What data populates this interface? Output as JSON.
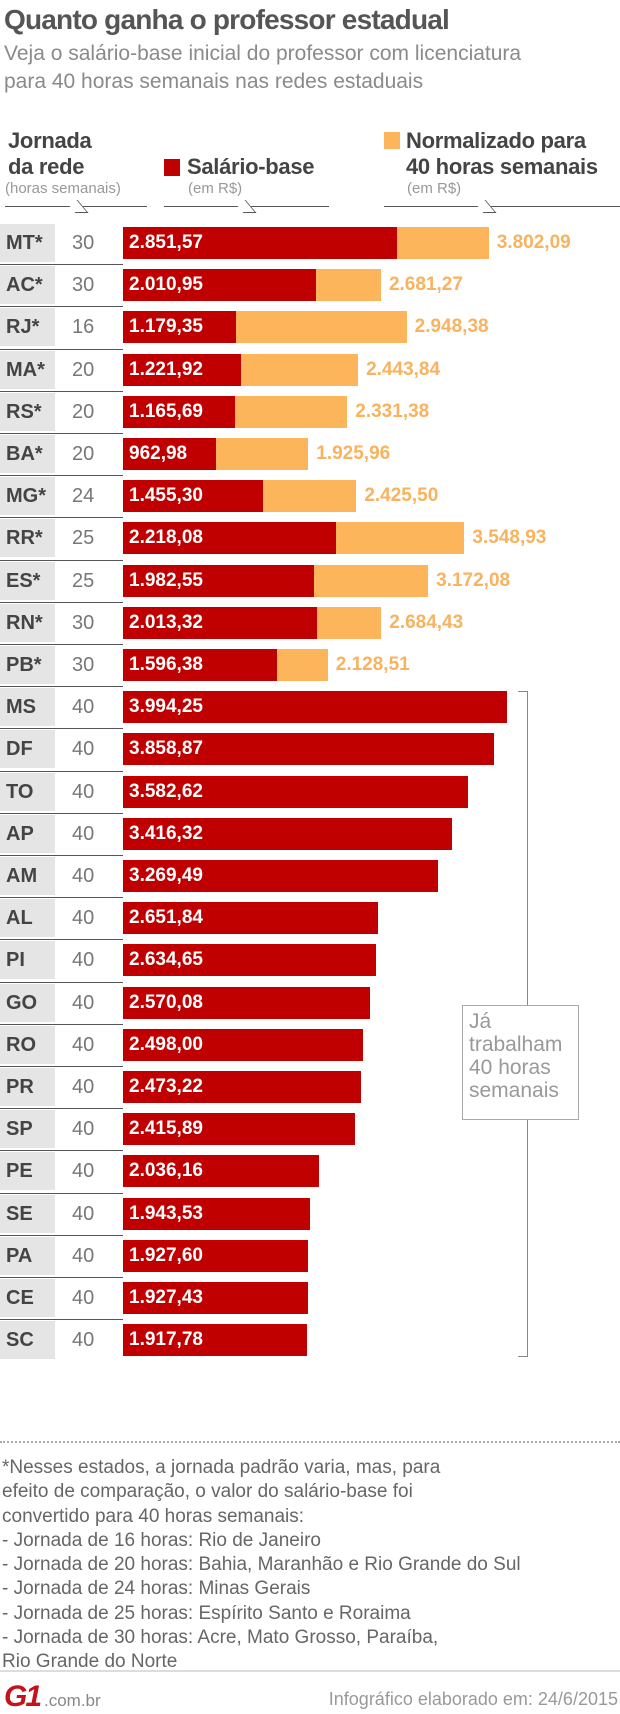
{
  "title": "Quanto ganha o professor estadual",
  "subtitle": [
    "Veja o salário-base inicial do professor com licenciatura",
    "para 40 horas semanais nas redes estaduais"
  ],
  "colors": {
    "base": "#c00000",
    "normalized": "#fdb55c",
    "normalized_text": "#f9b25e"
  },
  "legend": {
    "hours_title": [
      "Jornada",
      "da rede"
    ],
    "hours_unit": "(horas semanais)",
    "base_title": "Salário-base",
    "base_unit": "(em R$)",
    "normalized_title": [
      "Normalizado para",
      "40 horas semanais"
    ],
    "normalized_unit": "(em R$)"
  },
  "chart_data": {
    "type": "bar",
    "orientation": "horizontal",
    "series_names": [
      "Salário-base",
      "Normalizado para 40 horas semanais"
    ],
    "rows": [
      {
        "state": "MT*",
        "hours": "30",
        "base": 2851.57,
        "base_label": "2.851,57",
        "normalized": 3802.09,
        "normalized_label": "3.802,09"
      },
      {
        "state": "AC*",
        "hours": "30",
        "base": 2010.95,
        "base_label": "2.010,95",
        "normalized": 2681.27,
        "normalized_label": "2.681,27"
      },
      {
        "state": "RJ*",
        "hours": "16",
        "base": 1179.35,
        "base_label": "1.179,35",
        "normalized": 2948.38,
        "normalized_label": "2.948,38"
      },
      {
        "state": "MA*",
        "hours": "20",
        "base": 1221.92,
        "base_label": "1.221,92",
        "normalized": 2443.84,
        "normalized_label": "2.443,84"
      },
      {
        "state": "RS*",
        "hours": "20",
        "base": 1165.69,
        "base_label": "1.165,69",
        "normalized": 2331.38,
        "normalized_label": "2.331,38"
      },
      {
        "state": "BA*",
        "hours": "20",
        "base": 962.98,
        "base_label": "962,98",
        "normalized": 1925.96,
        "normalized_label": "1.925,96"
      },
      {
        "state": "MG*",
        "hours": "24",
        "base": 1455.3,
        "base_label": "1.455,30",
        "normalized": 2425.5,
        "normalized_label": "2.425,50"
      },
      {
        "state": "RR*",
        "hours": "25",
        "base": 2218.08,
        "base_label": "2.218,08",
        "normalized": 3548.93,
        "normalized_label": "3.548,93"
      },
      {
        "state": "ES*",
        "hours": "25",
        "base": 1982.55,
        "base_label": "1.982,55",
        "normalized": 3172.08,
        "normalized_label": "3.172,08"
      },
      {
        "state": "RN*",
        "hours": "30",
        "base": 2013.32,
        "base_label": "2.013,32",
        "normalized": 2684.43,
        "normalized_label": "2.684,43"
      },
      {
        "state": "PB*",
        "hours": "30",
        "base": 1596.38,
        "base_label": "1.596,38",
        "normalized": 2128.51,
        "normalized_label": "2.128,51"
      },
      {
        "state": "MS",
        "hours": "40",
        "base": 3994.25,
        "base_label": "3.994,25"
      },
      {
        "state": "DF",
        "hours": "40",
        "base": 3858.87,
        "base_label": "3.858,87"
      },
      {
        "state": "TO",
        "hours": "40",
        "base": 3582.62,
        "base_label": "3.582,62"
      },
      {
        "state": "AP",
        "hours": "40",
        "base": 3416.32,
        "base_label": "3.416,32"
      },
      {
        "state": "AM",
        "hours": "40",
        "base": 3269.49,
        "base_label": "3.269,49"
      },
      {
        "state": "AL",
        "hours": "40",
        "base": 2651.84,
        "base_label": "2.651,84"
      },
      {
        "state": "PI",
        "hours": "40",
        "base": 2634.65,
        "base_label": "2.634,65"
      },
      {
        "state": "GO",
        "hours": "40",
        "base": 2570.08,
        "base_label": "2.570,08"
      },
      {
        "state": "RO",
        "hours": "40",
        "base": 2498.0,
        "base_label": "2.498,00"
      },
      {
        "state": "PR",
        "hours": "40",
        "base": 2473.22,
        "base_label": "2.473,22"
      },
      {
        "state": "SP",
        "hours": "40",
        "base": 2415.89,
        "base_label": "2.415,89"
      },
      {
        "state": "PE",
        "hours": "40",
        "base": 2036.16,
        "base_label": "2.036,16"
      },
      {
        "state": "SE",
        "hours": "40",
        "base": 1943.53,
        "base_label": "1.943,53"
      },
      {
        "state": "PA",
        "hours": "40",
        "base": 1927.6,
        "base_label": "1.927,60"
      },
      {
        "state": "CE",
        "hours": "40",
        "base": 1927.43,
        "base_label": "1.927,43"
      },
      {
        "state": "SC",
        "hours": "40",
        "base": 1917.78,
        "base_label": "1.917,78"
      }
    ],
    "xlim": [
      0,
      4000
    ],
    "grid": false
  },
  "bracket_note": [
    "Já",
    "trabalham",
    "40 horas",
    "semanais"
  ],
  "footnote": [
    "*Nesses estados, a jornada padrão varia, mas, para",
    "efeito de comparação, o valor do salário-base foi",
    "convertido para 40 horas semanais:",
    "- Jornada de 16 horas: Rio de Janeiro",
    "- Jornada de 20 horas: Bahia, Maranhão e Rio Grande do Sul",
    "- Jornada de 24 horas: Minas Gerais",
    "- Jornada de 25 horas: Espírito Santo e Roraima",
    "- Jornada de 30 horas: Acre, Mato Grosso, Paraíba,",
    "Rio Grande do Norte"
  ],
  "footer": {
    "logo": "G1",
    "domain": ".com.br",
    "credit": "Infográfico elaborado em: 24/6/2015"
  }
}
